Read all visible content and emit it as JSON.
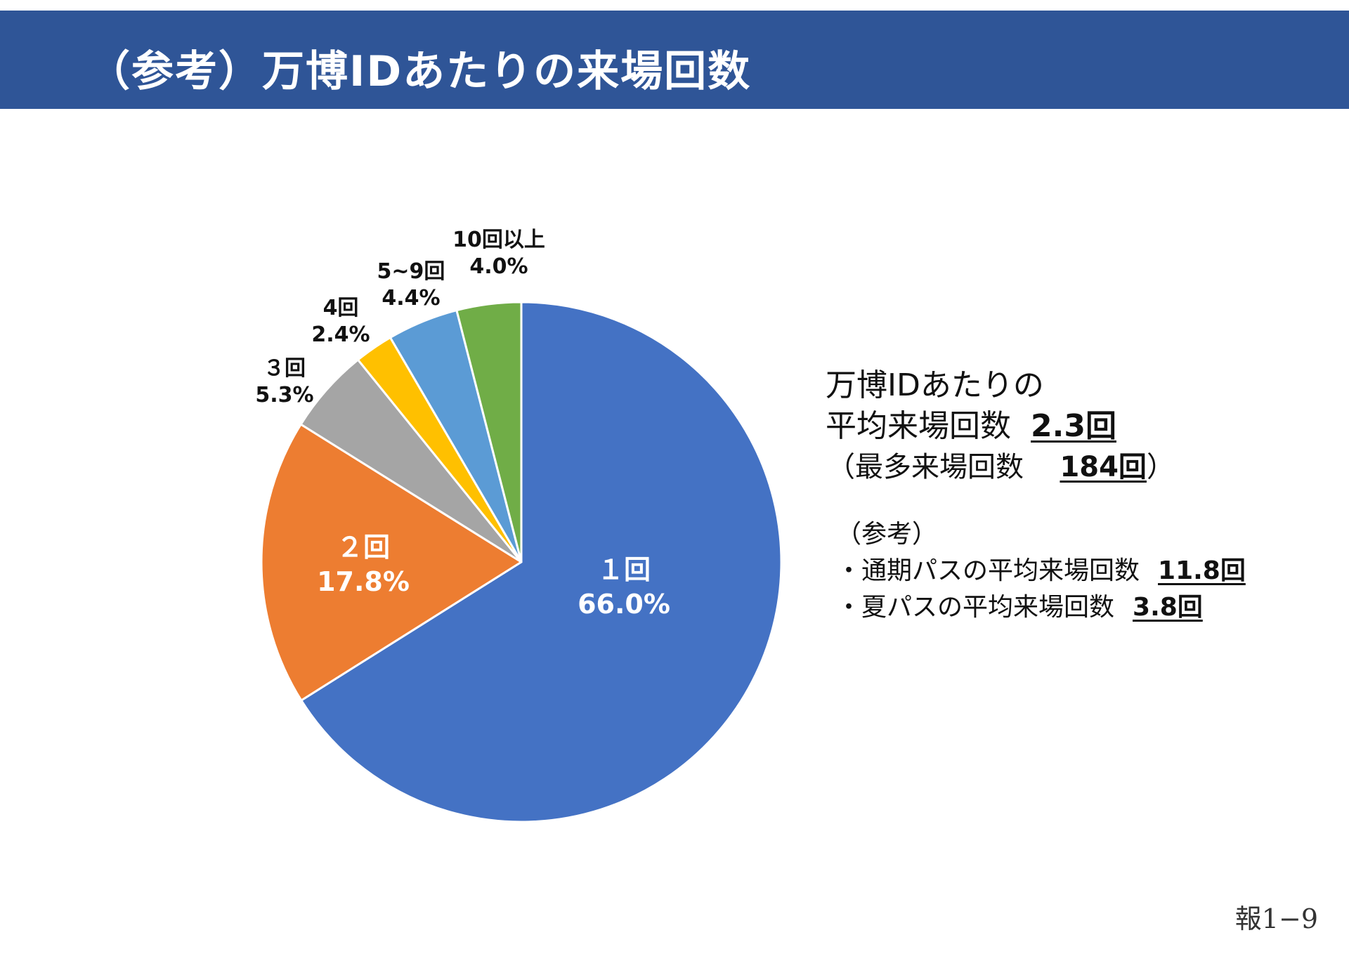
{
  "title": "（参考）万博IDあたりの来場回数",
  "chart_data": {
    "type": "pie",
    "start": "12 o'clock, clockwise",
    "slices": [
      {
        "label": "１回",
        "value": 66.0,
        "value_text": "66.0%",
        "color": "#4472c4"
      },
      {
        "label": "２回",
        "value": 17.8,
        "value_text": "17.8%",
        "color": "#ed7d31"
      },
      {
        "label": "３回",
        "value": 5.3,
        "value_text": "5.3%",
        "color": "#a5a5a5"
      },
      {
        "label": "4回",
        "value": 2.4,
        "value_text": "2.4%",
        "color": "#ffc000"
      },
      {
        "label": "5~9回",
        "value": 4.4,
        "value_text": "4.4%",
        "color": "#5b9bd5"
      },
      {
        "label": "10回以上",
        "value": 4.0,
        "value_text": "4.0%",
        "color": "#70ad47"
      }
    ]
  },
  "summary": {
    "line1": "万博IDあたりの",
    "line2_label": "平均来場回数",
    "avg_value": "2.3回",
    "line3_prefix": "（最多来場回数",
    "max_value": "184回",
    "line3_suffix": "）"
  },
  "reference": {
    "heading": "（参考）",
    "items": [
      {
        "label": "・通期パスの平均来場回数",
        "value": "11.8回"
      },
      {
        "label": "・夏パスの平均来場回数",
        "value": "3.8回"
      }
    ]
  },
  "page_number": "報1−9"
}
